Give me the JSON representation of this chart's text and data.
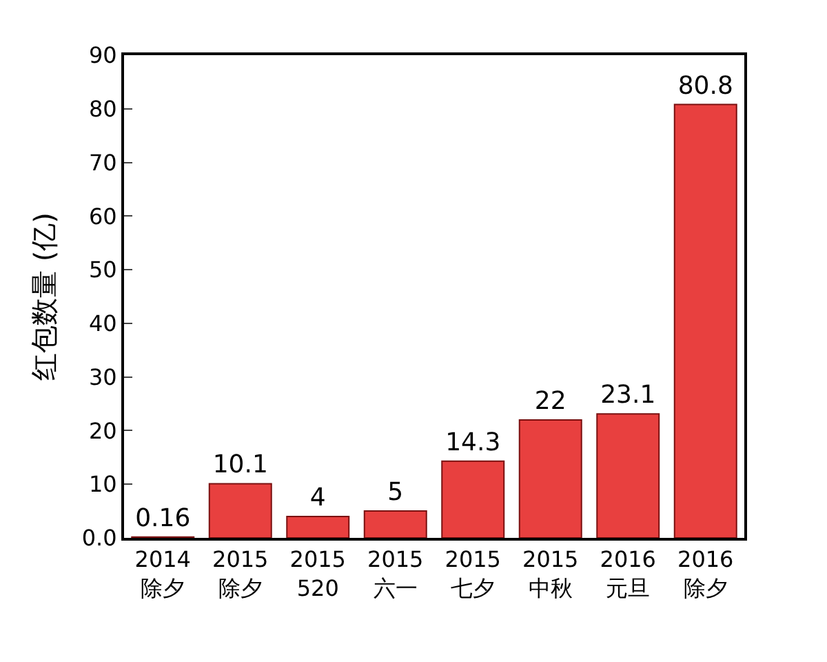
{
  "chart_data": {
    "type": "bar",
    "ylabel": "红包数量 (亿)",
    "categories": [
      "2014\n除夕",
      "2015\n除夕",
      "2015\n520",
      "2015\n六一",
      "2015\n七夕",
      "2015\n中秋",
      "2016\n元旦",
      "2016\n除夕"
    ],
    "values": [
      0.16,
      10.1,
      4,
      5,
      14.3,
      22,
      23.1,
      80.8
    ],
    "color": "#e8403f",
    "ylim": [
      0,
      90
    ],
    "yticks": [
      {
        "value": 0,
        "label": "0.0"
      },
      10,
      20,
      30,
      40,
      50,
      60,
      70,
      80,
      90
    ],
    "data_labels": true,
    "grid": false
  }
}
